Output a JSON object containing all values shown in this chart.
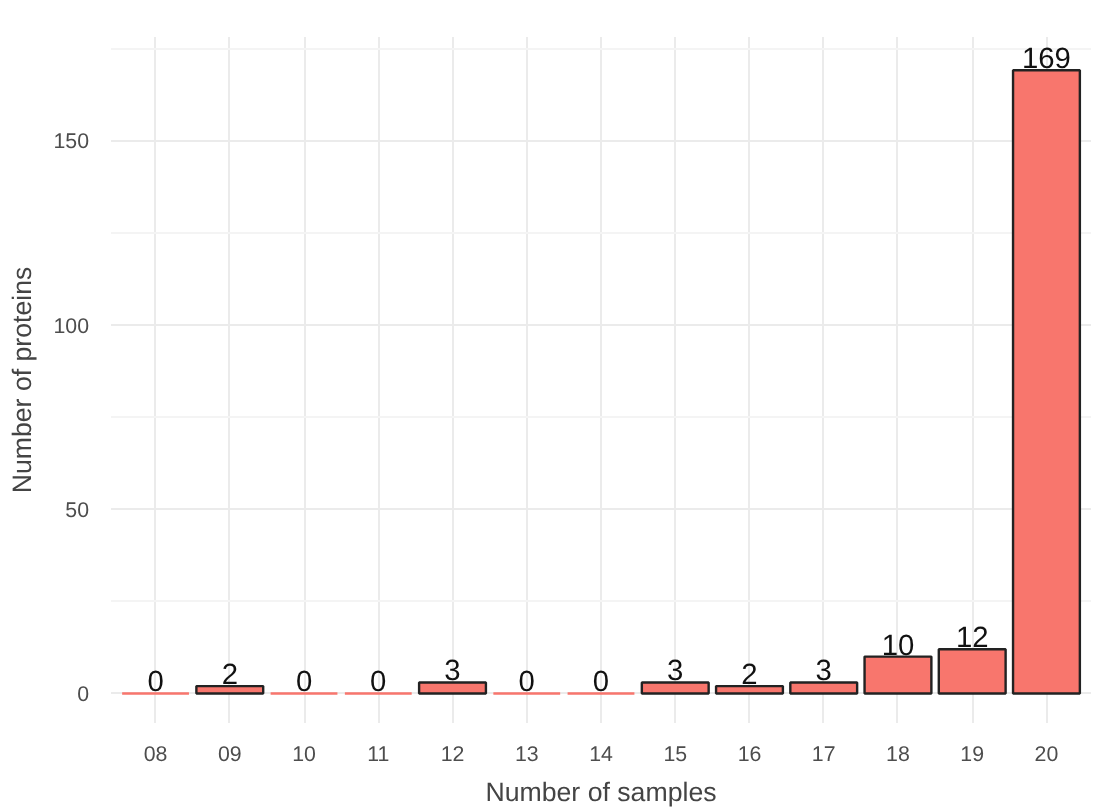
{
  "chart_data": {
    "type": "bar",
    "xlabel": "Number of samples",
    "ylabel": "Number of proteins",
    "categories": [
      "08",
      "09",
      "10",
      "11",
      "12",
      "13",
      "14",
      "15",
      "16",
      "17",
      "18",
      "19",
      "20"
    ],
    "values": [
      0,
      2,
      0,
      0,
      3,
      0,
      0,
      3,
      2,
      3,
      10,
      12,
      169
    ],
    "color": "#f8766d",
    "ylim": [
      -8,
      178
    ],
    "yticks": [
      0,
      50,
      100,
      150
    ],
    "grid": true,
    "data_labels": true
  }
}
